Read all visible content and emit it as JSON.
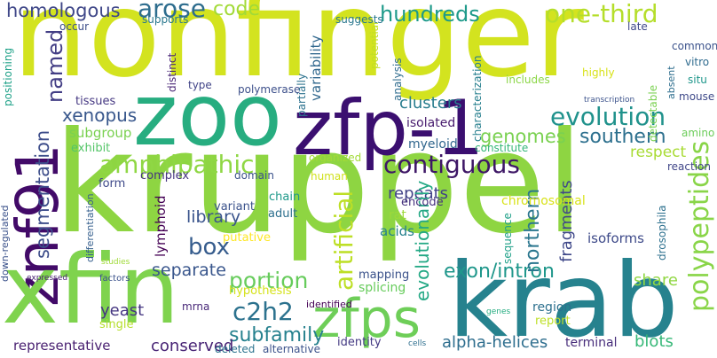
{
  "words": [
    {
      "text": "nonfinger",
      "color": "#d3e31f"
    },
    {
      "text": "kruppel",
      "color": "#8ed542"
    },
    {
      "text": "zoo",
      "color": "#27ad80"
    },
    {
      "text": "zfp-1",
      "color": "#3b0f70"
    },
    {
      "text": "znf91",
      "color": "#420a68"
    },
    {
      "text": "xfin",
      "color": "#7fd34e"
    },
    {
      "text": "krab",
      "color": "#26828e"
    },
    {
      "text": "zfps",
      "color": "#6ece58"
    },
    {
      "text": "amphipathic",
      "color": "#8fd744"
    },
    {
      "text": "contiguous",
      "color": "#3e1766"
    },
    {
      "text": "evolution",
      "color": "#20928c"
    },
    {
      "text": "one-third",
      "color": "#b5de2b"
    },
    {
      "text": "hundreds",
      "color": "#1e9a8a"
    },
    {
      "text": "homologous",
      "color": "#3f4788"
    },
    {
      "text": "arose",
      "color": "#2e6d8e"
    },
    {
      "text": "code",
      "color": "#a2da37"
    },
    {
      "text": "c2h2",
      "color": "#2c728e"
    },
    {
      "text": "portion",
      "color": "#67cc5c"
    },
    {
      "text": "box",
      "color": "#365c8d"
    },
    {
      "text": "subfamily",
      "color": "#26818e"
    },
    {
      "text": "exon/intron",
      "color": "#1f978b"
    },
    {
      "text": "xenopus",
      "color": "#38578c"
    },
    {
      "text": "named",
      "color": "#433e85"
    },
    {
      "text": "segmentation",
      "color": "#3d4d8a"
    },
    {
      "text": "artificial",
      "color": "#bddf26"
    },
    {
      "text": "polypeptides",
      "color": "#89d548"
    },
    {
      "text": "genomes",
      "color": "#7ad151"
    },
    {
      "text": "southern",
      "color": "#2d708e"
    },
    {
      "text": "clusters",
      "color": "#287d8e"
    },
    {
      "text": "repeats",
      "color": "#414287"
    },
    {
      "text": "northern",
      "color": "#2a768e"
    },
    {
      "text": "separate",
      "color": "#39568c"
    },
    {
      "text": "library",
      "color": "#3a548c"
    },
    {
      "text": "yeast",
      "color": "#453681"
    },
    {
      "text": "alpha-helices",
      "color": "#2e6e8e"
    },
    {
      "text": "conserved",
      "color": "#482475"
    },
    {
      "text": "representative",
      "color": "#481f70"
    },
    {
      "text": "blots",
      "color": "#37b878"
    },
    {
      "text": "evolutionarily",
      "color": "#22a884"
    },
    {
      "text": "fragments",
      "color": "#3f4889"
    },
    {
      "text": "respect",
      "color": "#a8db34"
    },
    {
      "text": "share",
      "color": "#90d743"
    },
    {
      "text": "isoforms",
      "color": "#3e4a89"
    },
    {
      "text": "variability",
      "color": "#31688e"
    },
    {
      "text": "subgroup",
      "color": "#7ad151"
    },
    {
      "text": "lymphoid",
      "color": "#440154"
    },
    {
      "text": "myeloid",
      "color": "#31678e"
    },
    {
      "text": "isolated",
      "color": "#481c6e"
    },
    {
      "text": "encode",
      "color": "#46317e"
    },
    {
      "text": "constitute",
      "color": "#35b779"
    },
    {
      "text": "chromosomal",
      "color": "#d8e219"
    },
    {
      "text": "splicing",
      "color": "#67cc5c"
    },
    {
      "text": "hypothesis",
      "color": "#d5e21a"
    },
    {
      "text": "mapping",
      "color": "#3b528b"
    },
    {
      "text": "acids",
      "color": "#26818e"
    },
    {
      "text": "rat",
      "color": "#9dd93b"
    },
    {
      "text": "region",
      "color": "#2d708e"
    },
    {
      "text": "terminal",
      "color": "#472d7b"
    },
    {
      "text": "report",
      "color": "#bddf26"
    },
    {
      "text": "identity",
      "color": "#443a83"
    },
    {
      "text": "alternative",
      "color": "#3b528b"
    },
    {
      "text": "deleted",
      "color": "#2c738e"
    },
    {
      "text": "single",
      "color": "#b5de2b"
    },
    {
      "text": "mrna",
      "color": "#482878"
    },
    {
      "text": "identified",
      "color": "#440154"
    },
    {
      "text": "chain",
      "color": "#1f998a"
    },
    {
      "text": "adult",
      "color": "#2d708e"
    },
    {
      "text": "putative",
      "color": "#fde725"
    },
    {
      "text": "variant",
      "color": "#3b528b"
    },
    {
      "text": "domain",
      "color": "#3b528b"
    },
    {
      "text": "form",
      "color": "#3e4989"
    },
    {
      "text": "complex",
      "color": "#463480"
    },
    {
      "text": "human",
      "color": "#d0e11c"
    },
    {
      "text": "organized",
      "color": "#a2da37"
    },
    {
      "text": "exhibit",
      "color": "#54c568"
    },
    {
      "text": "tissues",
      "color": "#453882"
    },
    {
      "text": "positioning",
      "color": "#1fa188"
    },
    {
      "text": "occur",
      "color": "#3d4e8a"
    },
    {
      "text": "supports",
      "color": "#2a788e"
    },
    {
      "text": "distinct",
      "color": "#482475"
    },
    {
      "text": "polymerase",
      "color": "#3c4f8a"
    },
    {
      "text": "type",
      "color": "#414487"
    },
    {
      "text": "partially",
      "color": "#2c728e"
    },
    {
      "text": "potential",
      "color": "#c2df23"
    },
    {
      "text": "suggests",
      "color": "#2a788e"
    },
    {
      "text": "characterization",
      "color": "#277f8e"
    },
    {
      "text": "analysis",
      "color": "#2f6c8e"
    },
    {
      "text": "includes",
      "color": "#8bd646"
    },
    {
      "text": "highly",
      "color": "#d8e219"
    },
    {
      "text": "late",
      "color": "#3f4889"
    },
    {
      "text": "common",
      "color": "#3b528b"
    },
    {
      "text": "vitro",
      "color": "#2f6b8e"
    },
    {
      "text": "absent",
      "color": "#2e6e8e"
    },
    {
      "text": "situ",
      "color": "#1f978b"
    },
    {
      "text": "mouse",
      "color": "#3e4989"
    },
    {
      "text": "detectable",
      "color": "#7ad151"
    },
    {
      "text": "transcription",
      "color": "#3b528b"
    },
    {
      "text": "amino",
      "color": "#6ccd5a"
    },
    {
      "text": "reaction",
      "color": "#404688"
    },
    {
      "text": "drosophila",
      "color": "#2d708e"
    },
    {
      "text": "sequence",
      "color": "#1fa088"
    },
    {
      "text": "factors",
      "color": "#3b528b"
    },
    {
      "text": "studies",
      "color": "#a0da39"
    },
    {
      "text": "expressed",
      "color": "#482071"
    },
    {
      "text": "down-regulated",
      "color": "#3b528b"
    },
    {
      "text": "differentiation",
      "color": "#355f8d"
    },
    {
      "text": "genes",
      "color": "#26ad81"
    },
    {
      "text": "cells",
      "color": "#2e6f8e"
    }
  ]
}
